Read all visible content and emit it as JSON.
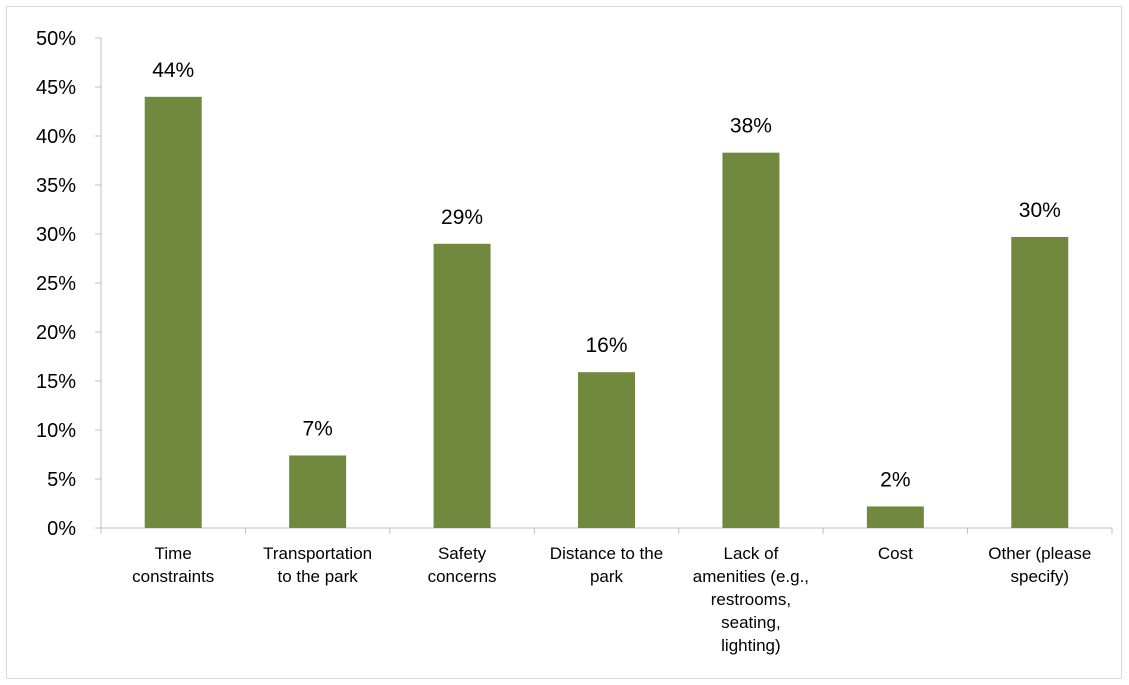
{
  "chart_data": {
    "type": "bar",
    "categories": [
      [
        "Time",
        "constraints"
      ],
      [
        "Transportation",
        "to the park"
      ],
      [
        "Safety",
        "concerns"
      ],
      [
        "Distance to the",
        "park"
      ],
      [
        "Lack of",
        "amenities (e.g.,",
        "restrooms,",
        "seating,",
        "lighting)"
      ],
      [
        "Cost"
      ],
      [
        "Other (please",
        "specify)"
      ]
    ],
    "values": [
      44,
      7.4,
      29,
      15.9,
      38.3,
      2.2,
      29.7
    ],
    "data_labels": [
      "44%",
      "7%",
      "29%",
      "16%",
      "38%",
      "2%",
      "30%"
    ],
    "ylim": [
      0,
      50
    ],
    "y_ticks": [
      "0%",
      "5%",
      "10%",
      "15%",
      "20%",
      "25%",
      "30%",
      "35%",
      "40%",
      "45%",
      "50%"
    ],
    "grid": false,
    "legend": "none",
    "bar_color": "#70893f"
  }
}
